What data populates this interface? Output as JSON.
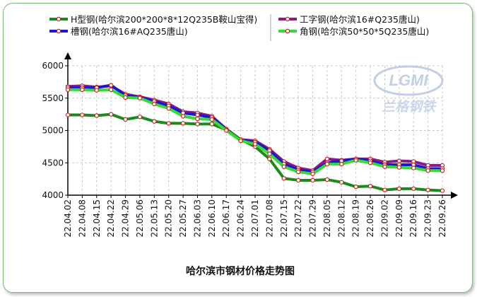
{
  "chart_data": {
    "type": "line",
    "title": "哈尔滨市钢材价格走势图",
    "x": [
      "22.04.02",
      "22.04.08",
      "22.04.15",
      "22.04.22",
      "22.04.29",
      "22.05.06",
      "22.05.13",
      "22.05.20",
      "22.05.27",
      "22.06.03",
      "22.06.10",
      "22.06.17",
      "22.06.24",
      "22.07.01",
      "22.07.08",
      "22.07.15",
      "22.07.22",
      "22.07.29",
      "22.08.05",
      "22.08.12",
      "22.08.19",
      "22.08.26",
      "22.09.02",
      "22.09.09",
      "22.09.16",
      "22.09.23",
      "22.09.26"
    ],
    "ylim": [
      4000,
      6000
    ],
    "yticks": [
      4000,
      4500,
      5000,
      5500,
      6000
    ],
    "grid": true,
    "legend_position": "top",
    "series": [
      {
        "name": "H型钢(哈尔滨200*200*8*12Q235B鞍山宝得)",
        "color": "#1a8a1a",
        "values": [
          5240,
          5240,
          5230,
          5250,
          5170,
          5210,
          5140,
          5110,
          5110,
          5100,
          5100,
          5010,
          4860,
          4750,
          4560,
          4260,
          4230,
          4230,
          4240,
          4200,
          4130,
          4140,
          4080,
          4100,
          4100,
          4080,
          4070
        ]
      },
      {
        "name": "工字钢(哈尔滨16#Q235唐山)",
        "color": "#8a1a8a",
        "values": [
          5680,
          5690,
          5670,
          5690,
          5560,
          5520,
          5470,
          5410,
          5290,
          5270,
          5220,
          5020,
          4860,
          4840,
          4710,
          4520,
          4420,
          4380,
          4560,
          4540,
          4560,
          4560,
          4510,
          4530,
          4520,
          4460,
          4460
        ]
      },
      {
        "name": "槽钢(哈尔滨16#AQ235唐山)",
        "color": "#1a1acc",
        "values": [
          5660,
          5660,
          5660,
          5700,
          5540,
          5510,
          5450,
          5380,
          5270,
          5240,
          5200,
          5020,
          4850,
          4820,
          4690,
          4480,
          4390,
          4360,
          4500,
          4530,
          4560,
          4530,
          4470,
          4470,
          4470,
          4410,
          4410
        ]
      },
      {
        "name": "角钢(哈尔滨50*50*5Q235唐山)",
        "color": "#33dd33",
        "values": [
          5630,
          5630,
          5620,
          5630,
          5510,
          5500,
          5410,
          5340,
          5220,
          5180,
          5170,
          5000,
          4840,
          4790,
          4640,
          4440,
          4360,
          4330,
          4480,
          4480,
          4540,
          4500,
          4440,
          4430,
          4420,
          4380,
          4380
        ]
      }
    ]
  }
}
